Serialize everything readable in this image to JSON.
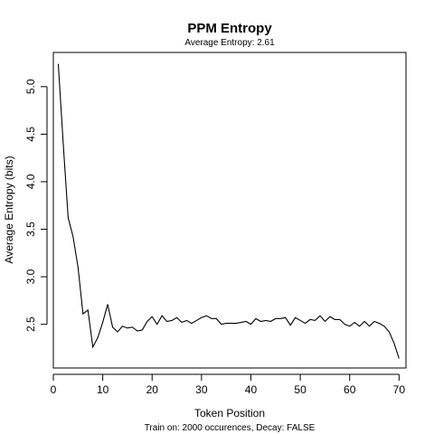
{
  "chart_data": {
    "type": "line",
    "title": "PPM Entropy",
    "subtitle": "Average Entropy: 2.61",
    "xlabel": "Token Position",
    "ylabel": "Average Entropy (bits)",
    "footer": "Train on: 2000 occurences, Decay: FALSE",
    "xlim": [
      0,
      71.4
    ],
    "ylim": [
      2.04,
      5.36
    ],
    "x_ticks": [
      0,
      10,
      20,
      30,
      40,
      50,
      60,
      70
    ],
    "y_ticks": [
      2.5,
      3.0,
      3.5,
      4.0,
      4.5,
      5.0
    ],
    "x_tick_labels": [
      "0",
      "10",
      "20",
      "30",
      "40",
      "50",
      "60",
      "70"
    ],
    "y_tick_labels": [
      "2.5",
      "3.0",
      "3.5",
      "4.0",
      "4.5",
      "5.0"
    ],
    "grid": false,
    "line_color": "#000000",
    "series": [
      {
        "x": [
          1,
          2,
          3,
          4,
          5,
          6,
          7,
          8,
          9,
          10,
          11,
          12,
          13,
          14,
          15,
          16,
          17,
          18,
          19,
          20,
          21,
          22,
          23,
          24,
          25,
          26,
          27,
          28,
          29,
          30,
          31,
          32,
          33,
          34,
          35,
          36,
          37,
          38,
          39,
          40,
          41,
          42,
          43,
          44,
          45,
          46,
          47,
          48,
          49,
          50,
          51,
          52,
          53,
          54,
          55,
          56,
          57,
          58,
          59,
          60,
          61,
          62,
          63,
          64,
          65,
          66,
          67,
          68,
          69,
          70
        ],
        "values": [
          5.24,
          4.4,
          3.62,
          3.42,
          3.1,
          2.61,
          2.65,
          2.26,
          2.36,
          2.52,
          2.71,
          2.47,
          2.42,
          2.48,
          2.46,
          2.47,
          2.43,
          2.44,
          2.53,
          2.58,
          2.5,
          2.59,
          2.53,
          2.54,
          2.57,
          2.52,
          2.54,
          2.51,
          2.54,
          2.57,
          2.59,
          2.56,
          2.56,
          2.5,
          2.51,
          2.51,
          2.51,
          2.52,
          2.53,
          2.5,
          2.56,
          2.53,
          2.54,
          2.53,
          2.56,
          2.56,
          2.57,
          2.49,
          2.57,
          2.54,
          2.51,
          2.55,
          2.54,
          2.59,
          2.53,
          2.58,
          2.55,
          2.55,
          2.5,
          2.48,
          2.52,
          2.48,
          2.53,
          2.48,
          2.53,
          2.51,
          2.48,
          2.42,
          2.3,
          2.14
        ]
      }
    ]
  }
}
